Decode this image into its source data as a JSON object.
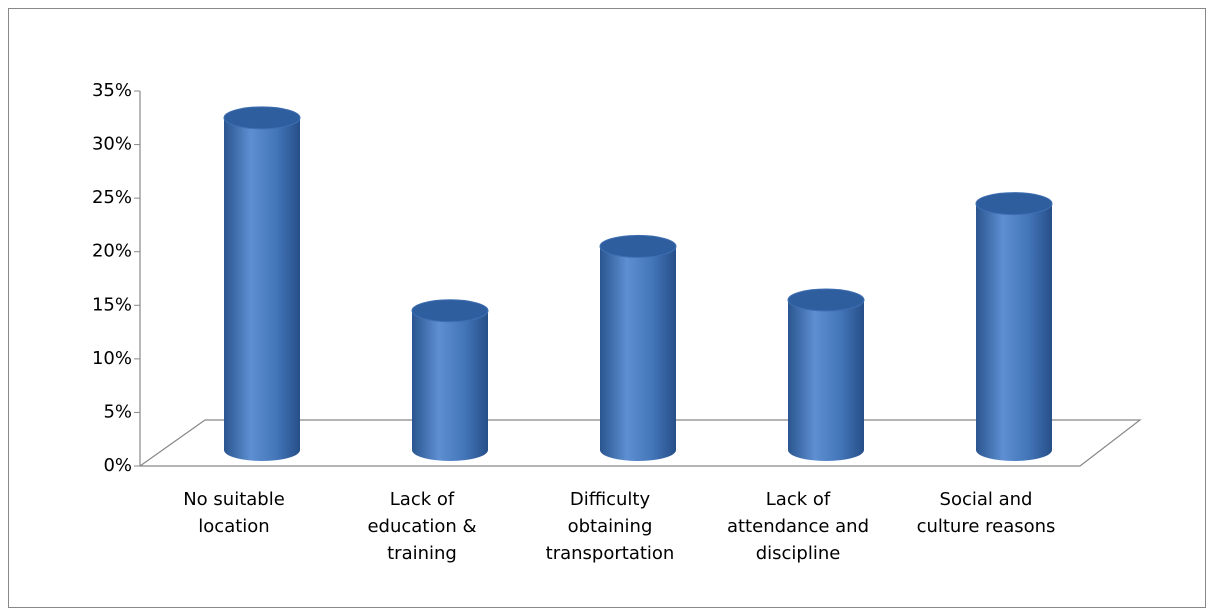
{
  "chart_data": {
    "type": "bar3d",
    "categories": [
      "No suitable\nlocation",
      "Lack of\neducation &\ntraining",
      "Difficulty\nobtaining\ntransportation",
      "Lack of\nattendance and\ndiscipline",
      "Social and\nculture reasons"
    ],
    "values": [
      31,
      13,
      19,
      14,
      23
    ],
    "color": "#4a7bbf",
    "ylim": [
      0,
      35
    ],
    "yticks": [
      {
        "value": 0,
        "label": "0%"
      },
      {
        "value": 5,
        "label": "5%"
      },
      {
        "value": 10,
        "label": "10%"
      },
      {
        "value": 15,
        "label": "15%"
      },
      {
        "value": 20,
        "label": "20%"
      },
      {
        "value": 25,
        "label": "25%"
      },
      {
        "value": 30,
        "label": "30%"
      },
      {
        "value": 35,
        "label": "35%"
      }
    ]
  }
}
